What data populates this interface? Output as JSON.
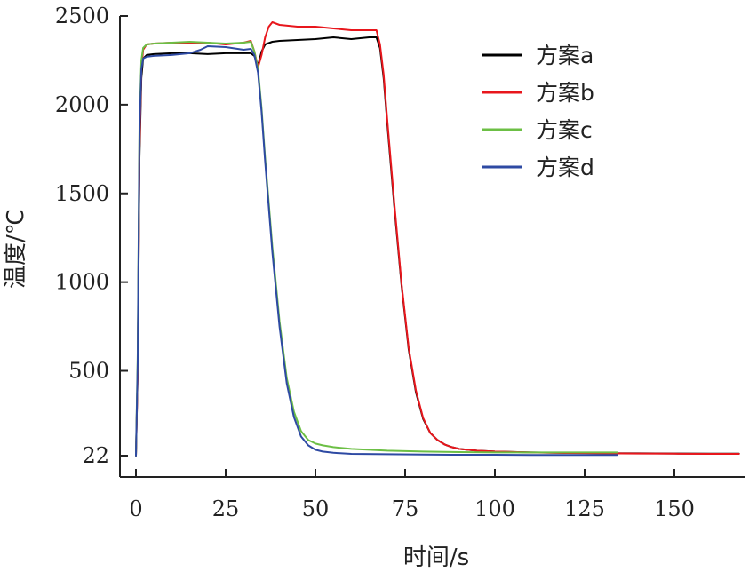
{
  "chart_data": {
    "type": "line",
    "title": "",
    "xlabel": "时间/s",
    "ylabel": "温度/℃",
    "xlim": [
      0,
      168
    ],
    "ylim": [
      22,
      2500
    ],
    "xticks": [
      0,
      25,
      50,
      75,
      100,
      125,
      150
    ],
    "yticks": [
      22,
      500,
      1000,
      1500,
      2000,
      2500
    ],
    "grid": false,
    "legend_position": "top-right",
    "series": [
      {
        "name": "方案a",
        "color": "#000000",
        "x": [
          0,
          0.5,
          1,
          1.5,
          2,
          3,
          5,
          10,
          15,
          20,
          25,
          30,
          32,
          33,
          34,
          35,
          36,
          38,
          40,
          45,
          50,
          55,
          60,
          65,
          67,
          68,
          69,
          70,
          72,
          74,
          76,
          78,
          80,
          82,
          84,
          86,
          88,
          90,
          95,
          100,
          110,
          120,
          130,
          140,
          150,
          160,
          168
        ],
        "y": [
          22,
          500,
          1700,
          2150,
          2260,
          2280,
          2285,
          2290,
          2290,
          2285,
          2290,
          2290,
          2290,
          2275,
          2220,
          2300,
          2340,
          2355,
          2360,
          2365,
          2370,
          2380,
          2370,
          2380,
          2380,
          2320,
          2150,
          1900,
          1420,
          980,
          620,
          380,
          230,
          150,
          110,
          85,
          70,
          60,
          50,
          45,
          40,
          38,
          36,
          35,
          34,
          33,
          33
        ]
      },
      {
        "name": "方案b",
        "color": "#e8161c",
        "x": [
          0,
          0.5,
          1,
          1.5,
          2,
          3,
          5,
          10,
          15,
          20,
          25,
          30,
          32,
          33,
          34,
          35,
          36,
          37,
          38,
          40,
          45,
          50,
          55,
          60,
          65,
          67,
          68,
          69,
          70,
          72,
          74,
          76,
          78,
          80,
          82,
          84,
          86,
          88,
          90,
          95,
          100,
          110,
          120,
          130,
          140,
          150,
          160,
          168
        ],
        "y": [
          22,
          500,
          1750,
          2200,
          2310,
          2340,
          2345,
          2350,
          2345,
          2350,
          2340,
          2350,
          2360,
          2300,
          2210,
          2280,
          2380,
          2440,
          2465,
          2450,
          2440,
          2440,
          2430,
          2420,
          2420,
          2420,
          2340,
          2170,
          1920,
          1440,
          990,
          630,
          390,
          235,
          150,
          110,
          85,
          70,
          60,
          50,
          45,
          40,
          37,
          35,
          34,
          33,
          32,
          32
        ]
      },
      {
        "name": "方案c",
        "color": "#6cbf45",
        "x": [
          0,
          0.5,
          1,
          1.5,
          2,
          3,
          5,
          10,
          15,
          20,
          25,
          30,
          32,
          33,
          34,
          35,
          36,
          38,
          40,
          42,
          44,
          46,
          48,
          50,
          52,
          55,
          60,
          70,
          80,
          90,
          100,
          110,
          120,
          130,
          134
        ],
        "y": [
          22,
          600,
          1900,
          2250,
          2320,
          2340,
          2345,
          2350,
          2355,
          2350,
          2345,
          2350,
          2355,
          2300,
          2200,
          1980,
          1700,
          1200,
          780,
          460,
          270,
          160,
          110,
          90,
          80,
          70,
          60,
          50,
          45,
          42,
          40,
          40,
          40,
          40,
          40
        ]
      },
      {
        "name": "方案d",
        "color": "#2e4aa3",
        "x": [
          0,
          0.5,
          1,
          1.5,
          2,
          3,
          5,
          10,
          15,
          18,
          20,
          25,
          30,
          32,
          33,
          34,
          35,
          36,
          38,
          40,
          42,
          44,
          46,
          48,
          50,
          52,
          55,
          60,
          70,
          80,
          90,
          100,
          110,
          120,
          130,
          134
        ],
        "y": [
          22,
          550,
          1850,
          2200,
          2260,
          2270,
          2275,
          2280,
          2290,
          2310,
          2330,
          2325,
          2310,
          2315,
          2280,
          2180,
          1960,
          1680,
          1170,
          750,
          430,
          240,
          130,
          80,
          55,
          45,
          38,
          32,
          30,
          28,
          27,
          27,
          26,
          26,
          26,
          26
        ]
      }
    ]
  }
}
